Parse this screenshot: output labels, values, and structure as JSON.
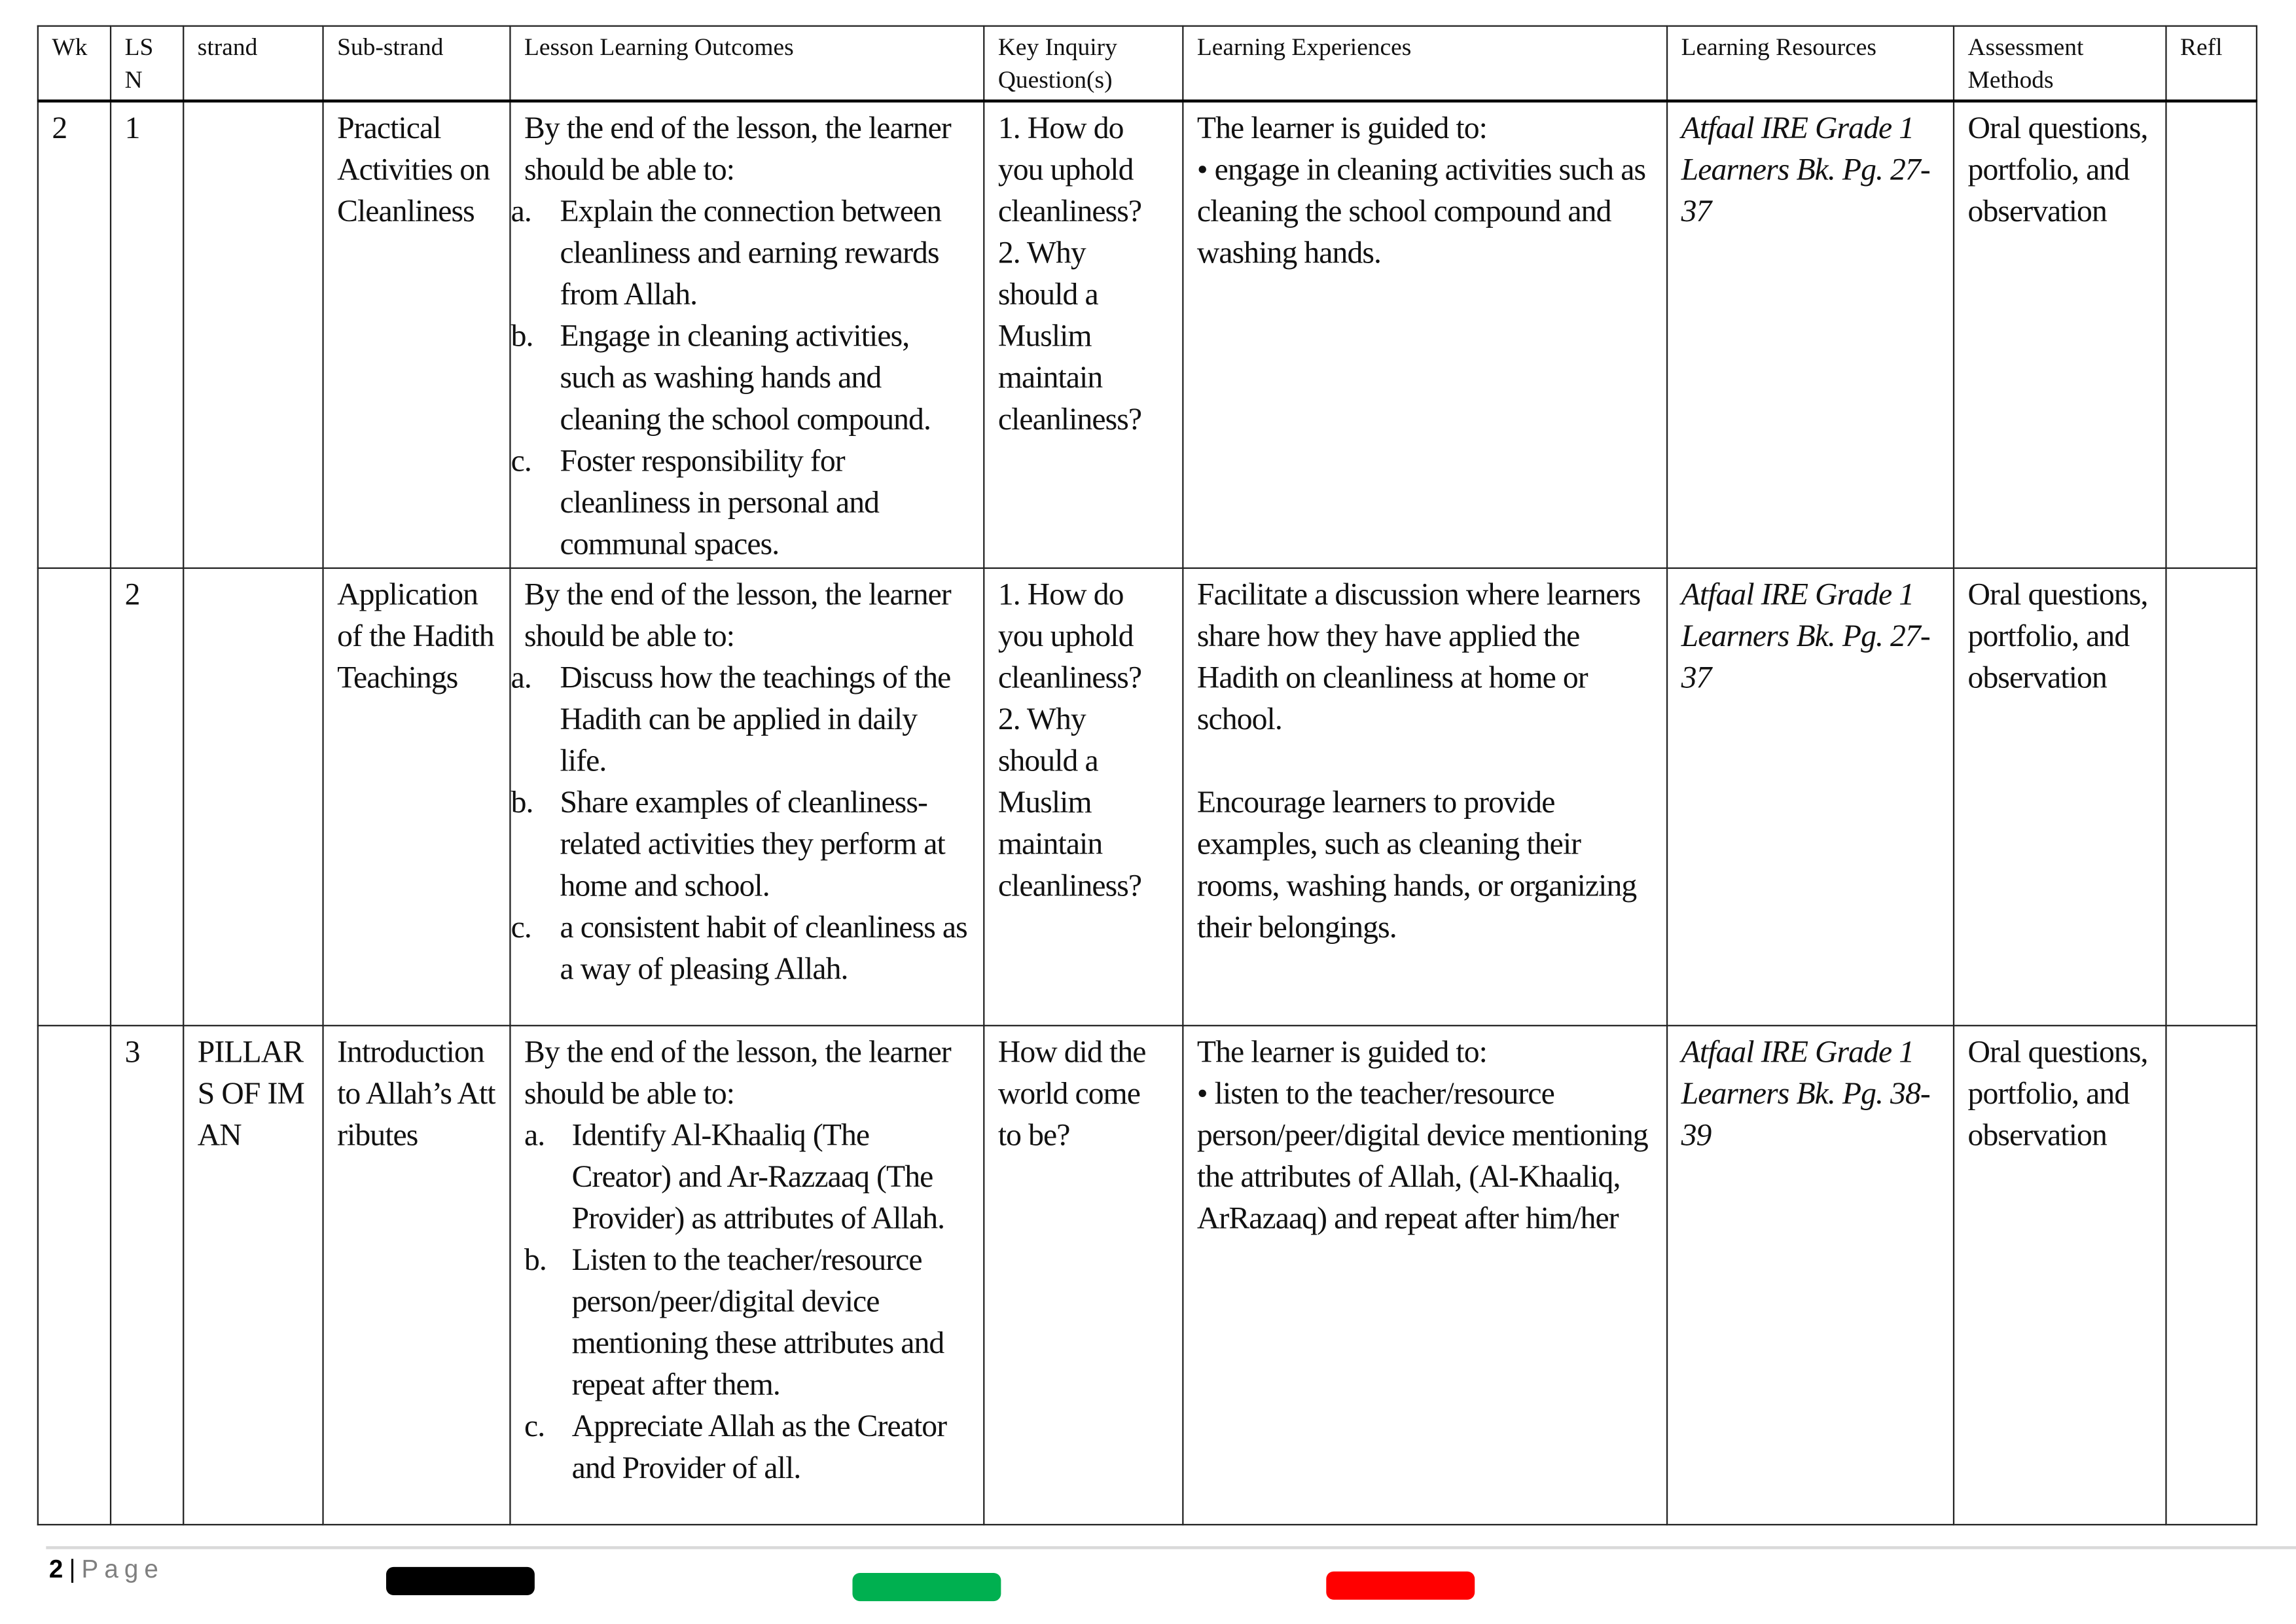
{
  "headers": [
    "Wk",
    "LS N",
    "strand",
    "Sub-strand",
    "Lesson Learning Outcomes",
    "Key Inquiry Question(s)",
    "Learning Experiences",
    "Learning Resources",
    "Assessment Methods",
    "Refl"
  ],
  "rows": [
    {
      "wk": "2",
      "lsn": "1",
      "strand": "",
      "substrand": "Practical Activities on Cleanliness",
      "outcomes_intro": "By the end of the lesson, the learner should be able to:",
      "outcomes": [
        {
          "letter": "a.",
          "text": "Explain the connection between cleanliness and earning rewards from Allah."
        },
        {
          "letter": "b.",
          "text": "Engage in cleaning activities, such as washing hands and cleaning the school compound."
        },
        {
          "letter": "c.",
          "text": "Foster responsibility for cleanliness in personal and communal spaces."
        }
      ],
      "inquiry": "1. How do you uphold cleanliness? 2. Why should a Muslim maintain cleanliness?",
      "experiences": [
        "The learner is guided to:",
        "• engage in cleaning activities such as cleaning the school compound and washing hands."
      ],
      "resources": "Atfaal IRE Grade 1 Learners Bk. Pg. 27-37",
      "assessment": "Oral questions, portfolio, and observation",
      "refl": ""
    },
    {
      "wk": "",
      "lsn": "2",
      "strand": "",
      "substrand": "Application of the Hadith Teachings",
      "outcomes_intro": "By the end of the lesson, the learner should be able to:",
      "outcomes": [
        {
          "letter": "a.",
          "text": "Discuss how the teachings of the Hadith can be applied in daily life."
        },
        {
          "letter": "b.",
          "text": "Share examples of cleanliness-related activities they perform at home and school."
        },
        {
          "letter": "c.",
          "text": "a consistent habit of cleanliness as a way of pleasing Allah."
        }
      ],
      "inquiry": "1. How do you uphold cleanliness? 2. Why should a Muslim maintain cleanliness?",
      "experiences": [
        "Facilitate a discussion where learners share how they have applied the Hadith on cleanliness at home or school.",
        "Encourage learners to provide examples, such as cleaning their rooms, washing hands, or organizing their belongings."
      ],
      "resources": "Atfaal IRE Grade 1 Learners Bk. Pg. 27-37",
      "assessment": "Oral questions, portfolio, and observation",
      "refl": ""
    },
    {
      "wk": "",
      "lsn": "3",
      "strand": "PILLARS OF IMAN",
      "substrand": "Introduction to Allah’s Attributes",
      "outcomes_intro": "By the end of the lesson, the learner should be able to:",
      "outcomes": [
        {
          "letter": "a.",
          "text": "Identify Al-Khaaliq (The Creator) and Ar-Razzaaq (The Provider) as attributes of Allah."
        },
        {
          "letter": "b.",
          "text": "Listen to the teacher/resource person/peer/digital device mentioning these attributes and repeat after them."
        },
        {
          "letter": "c.",
          "text": "Appreciate Allah as the Creator and Provider of all."
        }
      ],
      "inquiry": "How did the world come to be?",
      "experiences": [
        "The learner is guided to:",
        "• listen to the teacher/resource person/peer/digital device mentioning the attributes of Allah, (Al-Khaaliq, ArRazaaq) and repeat after him/her"
      ],
      "resources": "Atfaal IRE Grade 1 Learners Bk. Pg. 38-39",
      "assessment": "Oral questions, portfolio, and observation",
      "refl": ""
    }
  ],
  "footer": {
    "page_number": "2",
    "separator": "|",
    "page_label": "Page",
    "bar_colors": [
      "#000000",
      "#00b050",
      "#ff0000"
    ]
  }
}
